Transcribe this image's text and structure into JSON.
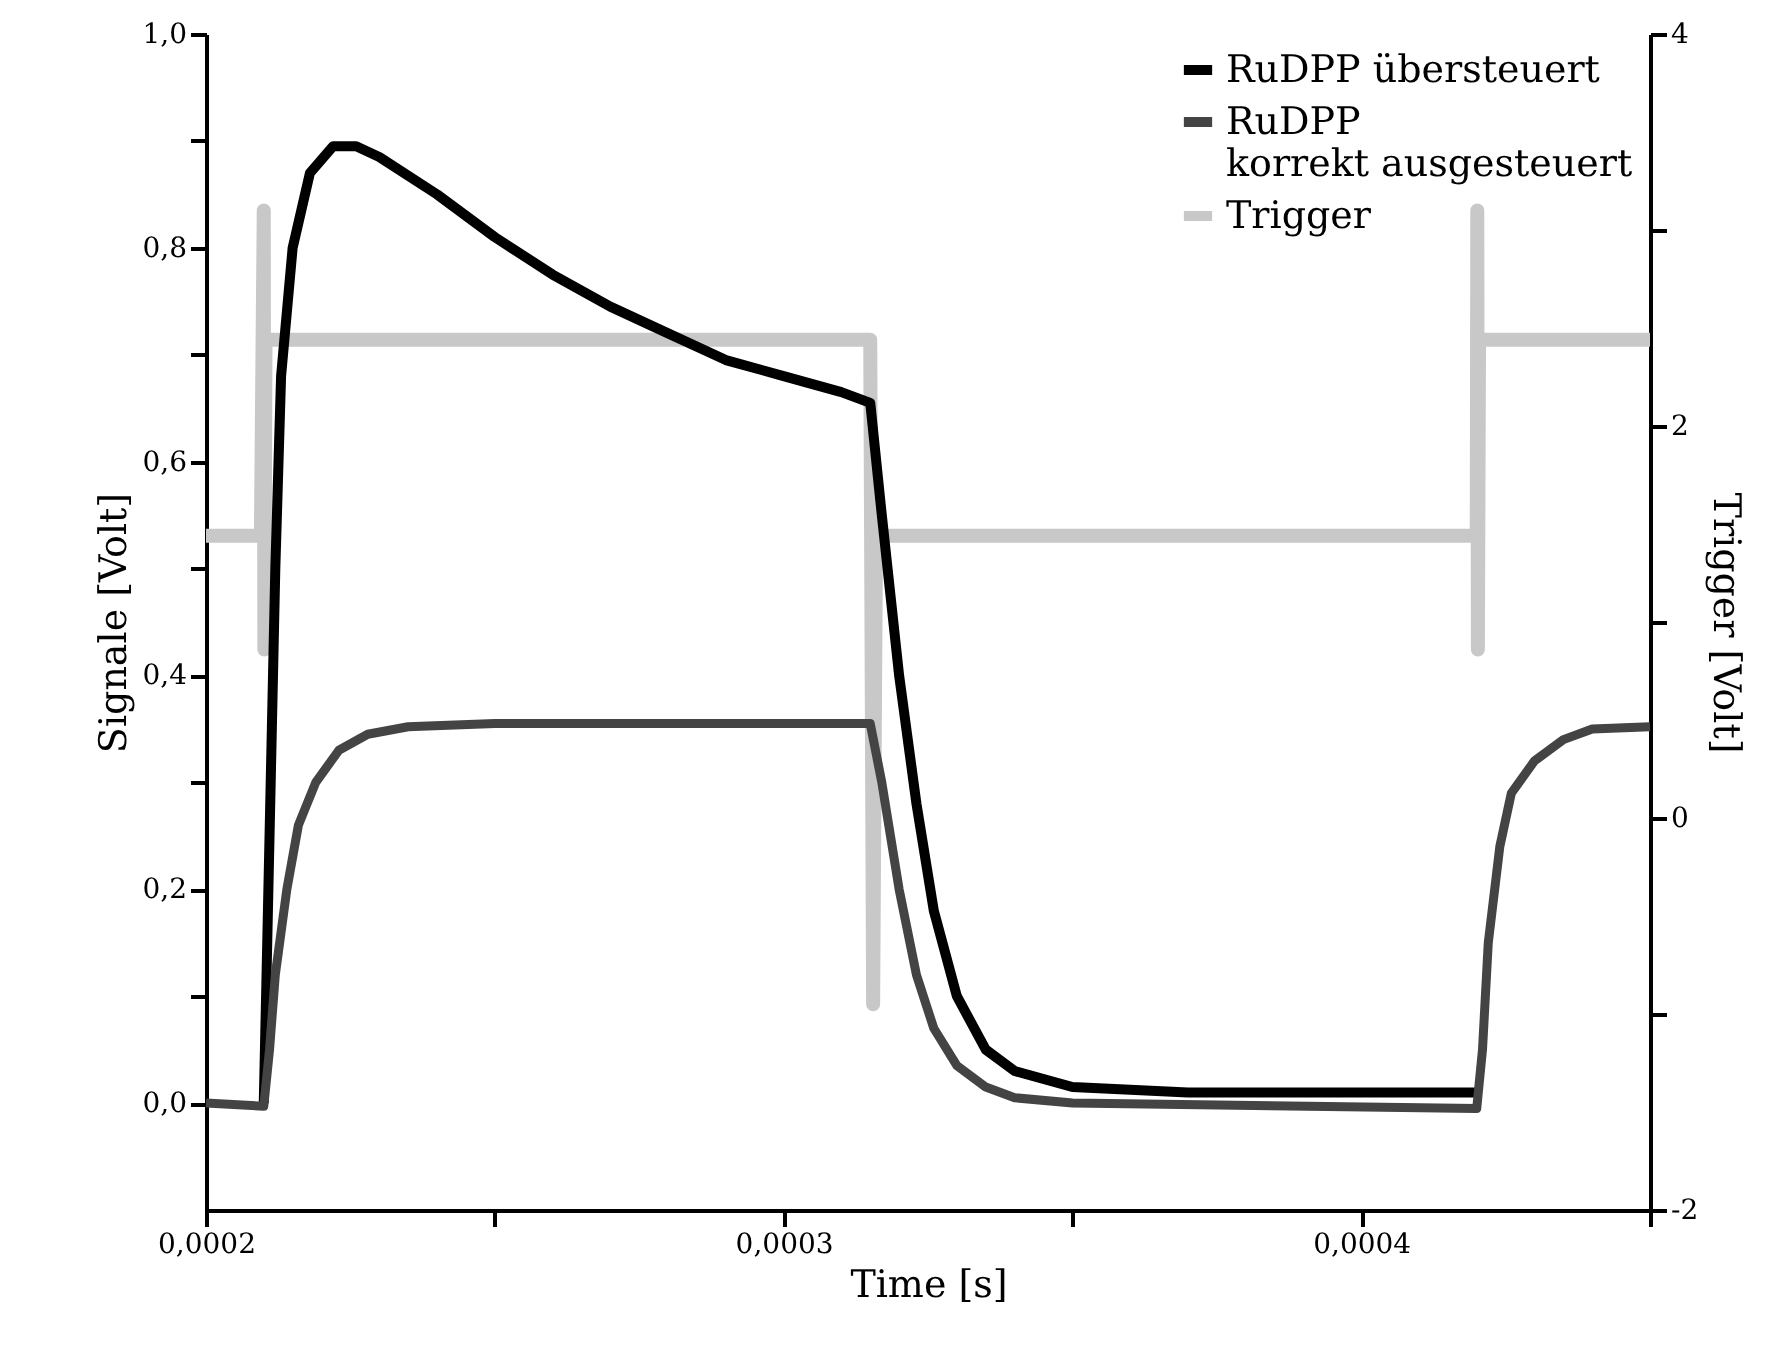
{
  "chart_data": {
    "type": "line",
    "xlabel": "Time [s]",
    "ylabel": "Signale [Volt]",
    "y2label": "Trigger [Volt]",
    "xlim": [
      0.0002,
      0.00045
    ],
    "xticks": [
      {
        "value": 0.0002,
        "label": "0,0002"
      },
      {
        "value": 0.00025,
        "label": null
      },
      {
        "value": 0.0003,
        "label": "0,0003"
      },
      {
        "value": 0.00035,
        "label": null
      },
      {
        "value": 0.0004,
        "label": "0,0004"
      },
      {
        "value": 0.00045,
        "label": null
      }
    ],
    "ylim": [
      -0.1,
      1.0
    ],
    "yticks": [
      {
        "value": 0,
        "label": "0,0"
      },
      {
        "value": 0.1,
        "label": null
      },
      {
        "value": 0.2,
        "label": "0,2"
      },
      {
        "value": 0.3,
        "label": null
      },
      {
        "value": 0.4,
        "label": "0,4"
      },
      {
        "value": 0.5,
        "label": null
      },
      {
        "value": 0.6,
        "label": "0,6"
      },
      {
        "value": 0.7,
        "label": null
      },
      {
        "value": 0.8,
        "label": "0,8"
      },
      {
        "value": 0.9,
        "label": null
      },
      {
        "value": 1.0,
        "label": "1,0"
      }
    ],
    "y2lim": [
      -2,
      4
    ],
    "y2ticks": [
      -2,
      {
        "value": -1,
        "label": null
      },
      0,
      {
        "value": 1,
        "label": null
      },
      2,
      {
        "value": 3,
        "label": null
      },
      4
    ],
    "grid": false,
    "legend": "top right",
    "marker": "none",
    "line_style": "solid",
    "series": [
      {
        "name": "RuDPP übersteuert",
        "color": "#000000",
        "x": [
          0.00021,
          0.000211,
          0.000212,
          0.000213,
          0.000215,
          0.000218,
          0.000222,
          0.000226,
          0.00023,
          0.00024,
          0.00025,
          0.00026,
          0.00027,
          0.00028,
          0.00029,
          0.0003,
          0.00031,
          0.000315,
          0.000317,
          0.00032,
          0.000323,
          0.000326,
          0.00033,
          0.000335,
          0.00034,
          0.00035,
          0.00037,
          0.00042
        ],
        "values": [
          0.0,
          0.25,
          0.5,
          0.68,
          0.8,
          0.87,
          0.895,
          0.895,
          0.885,
          0.85,
          0.81,
          0.775,
          0.745,
          0.72,
          0.695,
          0.68,
          0.665,
          0.655,
          0.55,
          0.4,
          0.28,
          0.18,
          0.1,
          0.05,
          0.03,
          0.015,
          0.01,
          0.01
        ]
      },
      {
        "name": "RuDPP\nkorrekt ausgesteuert",
        "color": "#444444",
        "x": [
          0.0002,
          0.00021,
          0.000211,
          0.000212,
          0.000214,
          0.000216,
          0.000219,
          0.000223,
          0.000228,
          0.000235,
          0.00025,
          0.000315,
          0.000317,
          0.00032,
          0.000323,
          0.000326,
          0.00033,
          0.000335,
          0.00034,
          0.00035,
          0.00042,
          0.000421,
          0.000422,
          0.000424,
          0.000426,
          0.00043,
          0.000435,
          0.00044,
          0.00045
        ],
        "values": [
          0.0,
          -0.003,
          0.05,
          0.12,
          0.2,
          0.26,
          0.3,
          0.33,
          0.345,
          0.352,
          0.355,
          0.355,
          0.3,
          0.2,
          0.12,
          0.07,
          0.035,
          0.015,
          0.005,
          0.0,
          -0.005,
          0.05,
          0.15,
          0.24,
          0.29,
          0.32,
          0.34,
          0.35,
          0.352
        ]
      },
      {
        "name": "Trigger",
        "color": "#c8c8c8",
        "axis": "y2",
        "x": [
          0.0002,
          0.0002095,
          0.00021,
          0.0002101,
          0.0002103,
          0.00025,
          0.0003,
          0.000315,
          0.0003155,
          0.000316,
          0.00035,
          0.0004,
          0.00042,
          0.0004201,
          0.0004202,
          0.0004204,
          0.00045
        ],
        "values": [
          1.44,
          1.44,
          3.1,
          0.86,
          2.44,
          2.44,
          2.44,
          2.44,
          -0.95,
          1.44,
          1.44,
          1.44,
          1.44,
          3.1,
          0.86,
          2.44,
          2.44
        ]
      }
    ]
  }
}
